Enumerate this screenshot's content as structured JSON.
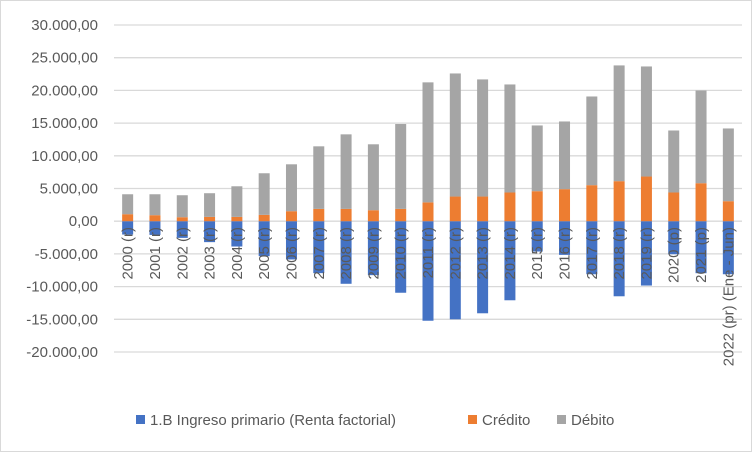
{
  "chart_data": {
    "type": "bar",
    "stacked": true,
    "title": "",
    "xlabel": "",
    "ylabel": "",
    "ylim": [
      -20000,
      30000
    ],
    "ytick_step": 5000,
    "yticks": [
      "30.000,00",
      "25.000,00",
      "20.000,00",
      "15.000,00",
      "10.000,00",
      "5.000,00",
      "0,00",
      "-5.000,00",
      "-10.000,00",
      "-15.000,00",
      "-20.000,00"
    ],
    "grid": true,
    "legend_position": "bottom",
    "categories": [
      "2000 (r)",
      "2001 (r)",
      "2002 (r)",
      "2003 (r)",
      "2004 (r)",
      "2005 (r)",
      "2006 (r)",
      "2007 (r)",
      "2008 (r)",
      "2009 (r)",
      "2010 (r)",
      "2011 (r)",
      "2012 (r)",
      "2013 (r)",
      "2014 (r)",
      "2015 (r)",
      "2016 (r)",
      "2017 (r)",
      "2018 (r)",
      "2019 (r)",
      "2020 (p)",
      "2021 (p)",
      "2022 (pr) (Ene - Jun)"
    ],
    "series": [
      {
        "name": "1.B Ingreso primario (Renta factorial)",
        "color": "#4472c4",
        "values": [
          -2040,
          -2100,
          -2550,
          -3200,
          -3870,
          -5340,
          -5850,
          -7940,
          -9570,
          -8250,
          -10940,
          -15220,
          -15000,
          -14080,
          -12090,
          -4640,
          -5150,
          -8110,
          -11480,
          -9840,
          -5050,
          -7950,
          -8110
        ]
      },
      {
        "name": "Crédito",
        "color": "#ed7d31",
        "values": [
          1070,
          920,
          610,
          660,
          660,
          970,
          1530,
          1880,
          1880,
          1680,
          1880,
          2880,
          3770,
          3770,
          4390,
          4590,
          4900,
          5510,
          6120,
          6830,
          4390,
          5810,
          3060
        ]
      },
      {
        "name": "Débito",
        "color": "#a5a5a5",
        "values": [
          3050,
          3200,
          3360,
          3620,
          4680,
          6360,
          7170,
          9570,
          11400,
          10080,
          12980,
          18350,
          18820,
          17910,
          16520,
          10050,
          10350,
          13560,
          17700,
          16830,
          9480,
          14180,
          11120
        ]
      }
    ]
  }
}
